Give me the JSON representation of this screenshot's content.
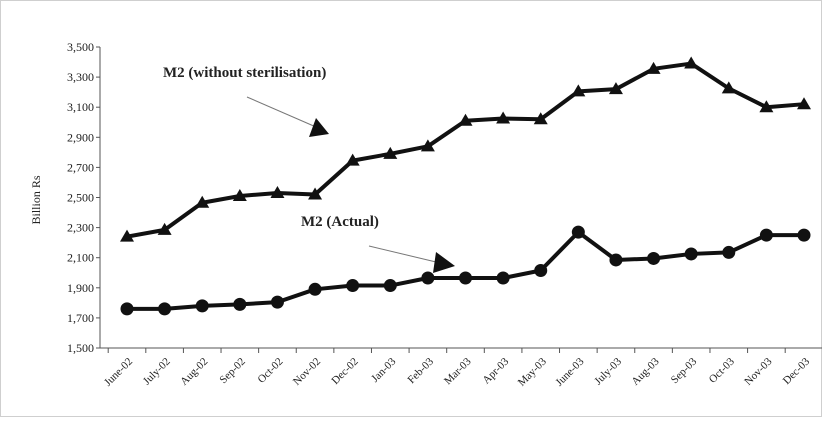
{
  "chart_data": {
    "type": "line",
    "title": "",
    "xlabel": "",
    "ylabel": "Billion Rs",
    "categories": [
      "June-02",
      "July-02",
      "Aug-02",
      "Sep-02",
      "Oct-02",
      "Nov-02",
      "Dec-02",
      "Jan-03",
      "Feb-03",
      "Mar-03",
      "Apr-03",
      "May-03",
      "June-03",
      "July-03",
      "Aug-03",
      "Sep-03",
      "Oct-03",
      "Nov-03",
      "Dec-03"
    ],
    "ylim": [
      1500,
      3500
    ],
    "yticks": [
      1500,
      1700,
      1900,
      2100,
      2300,
      2500,
      2700,
      2900,
      3100,
      3300,
      3500
    ],
    "ytick_labels": [
      "1,500",
      "1,700",
      "1,900",
      "2,100",
      "2,300",
      "2,500",
      "2,700",
      "2,900",
      "3,100",
      "3,300",
      "3,500"
    ],
    "grid": false,
    "legend": "none",
    "series": [
      {
        "name": "M2 (without sterilisation)",
        "marker": "triangle",
        "color": "#111111",
        "values": [
          2240,
          2285,
          2465,
          2510,
          2530,
          2520,
          2745,
          2790,
          2840,
          3010,
          3025,
          3020,
          3205,
          3220,
          3355,
          3390,
          3225,
          3100,
          3120
        ]
      },
      {
        "name": "M2 (Actual)",
        "marker": "circle",
        "color": "#111111",
        "values": [
          1760,
          1760,
          1780,
          1790,
          1805,
          1890,
          1915,
          1915,
          1965,
          1965,
          1965,
          2015,
          2270,
          2085,
          2095,
          2125,
          2135,
          2250,
          2250
        ]
      }
    ],
    "annotations": [
      {
        "text": "M2 (without sterilisation)",
        "series": 0
      },
      {
        "text": "M2 (Actual)",
        "series": 1
      }
    ]
  }
}
